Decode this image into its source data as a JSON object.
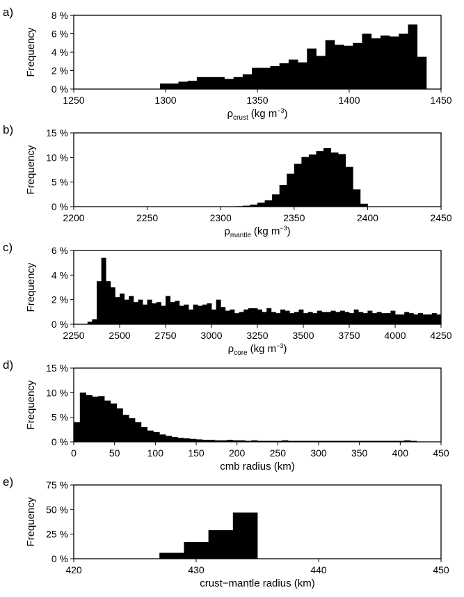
{
  "chart_data": [
    {
      "type": "bar",
      "panel": "a)",
      "ylabel": "Frequency",
      "xlabel_main": "ρ",
      "xlabel_sub": "crust",
      "xlabel_unit": "(kg m",
      "xlabel_sup": "−3",
      "xlabel_close": ")",
      "xlim": [
        1250,
        1450
      ],
      "ylim": [
        0,
        8
      ],
      "xticks": [
        "1250",
        "1300",
        "1350",
        "1400",
        "1450"
      ],
      "yticks": [
        "0 %",
        "2 %",
        "4 %",
        "6 %",
        "8 %"
      ],
      "bin_start": 1297,
      "bin_width": 5,
      "values": [
        0.6,
        0.6,
        0.8,
        0.9,
        1.3,
        1.3,
        1.3,
        1.1,
        1.3,
        1.6,
        2.3,
        2.3,
        2.5,
        2.8,
        3.2,
        2.9,
        4.4,
        3.6,
        5.3,
        4.8,
        4.7,
        5.0,
        6.0,
        5.5,
        5.8,
        5.7,
        6.0,
        7.0,
        3.5
      ]
    },
    {
      "type": "bar",
      "panel": "b)",
      "ylabel": "Frequency",
      "xlabel_main": "ρ",
      "xlabel_sub": "mantle",
      "xlabel_unit": "(kg m",
      "xlabel_sup": "−3",
      "xlabel_close": ")",
      "xlim": [
        2200,
        2450
      ],
      "ylim": [
        0,
        15
      ],
      "xticks": [
        "2200",
        "2250",
        "2300",
        "2350",
        "2400",
        "2450"
      ],
      "yticks": [
        "0 %",
        "5 %",
        "10 %",
        "15 %"
      ],
      "bin_start": 2310,
      "bin_width": 5,
      "values": [
        0.1,
        0.2,
        0.4,
        0.8,
        1.3,
        2.5,
        4.4,
        6.7,
        8.7,
        10.1,
        10.6,
        11.3,
        11.9,
        11.0,
        10.7,
        8.1,
        3.5,
        0.6
      ]
    },
    {
      "type": "bar",
      "panel": "c)",
      "ylabel": "Frequency",
      "xlabel_main": "ρ",
      "xlabel_sub": "core",
      "xlabel_unit": "(kg m",
      "xlabel_sup": "−3",
      "xlabel_close": ")",
      "xlim": [
        2250,
        4250
      ],
      "ylim": [
        0,
        6
      ],
      "xticks": [
        "2250",
        "2500",
        "2750",
        "3000",
        "3250",
        "3500",
        "3750",
        "4000",
        "4250"
      ],
      "yticks": [
        "0 %",
        "2 %",
        "4 %",
        "6 %"
      ],
      "bin_start": 2325,
      "bin_width": 25,
      "values": [
        0.2,
        0.4,
        3.5,
        5.4,
        3.5,
        3.0,
        2.2,
        2.5,
        2.0,
        2.3,
        1.8,
        2.0,
        1.6,
        2.0,
        1.7,
        1.8,
        1.5,
        2.3,
        1.8,
        1.9,
        1.5,
        1.6,
        1.2,
        1.6,
        1.5,
        1.6,
        1.7,
        1.2,
        2.0,
        1.4,
        1.1,
        1.2,
        0.9,
        1.0,
        1.2,
        1.3,
        1.3,
        1.2,
        1.0,
        1.3,
        1.0,
        0.9,
        1.2,
        1.1,
        0.9,
        1.0,
        1.2,
        0.9,
        1.0,
        0.9,
        1.1,
        1.0,
        1.0,
        1.1,
        1.0,
        1.1,
        1.0,
        0.9,
        1.2,
        1.0,
        0.9,
        1.1,
        0.9,
        1.0,
        0.9,
        0.9,
        1.1,
        0.8,
        0.8,
        1.0,
        0.9,
        0.8,
        0.9,
        0.8,
        0.8,
        0.9,
        0.8,
        0.8,
        0.9,
        0.8,
        0.8,
        0.9,
        0.8,
        0.8,
        0.7,
        0.9,
        0.8,
        0.8,
        0.7,
        0.8,
        0.8,
        0.7,
        0.8,
        0.9,
        0.7,
        0.8,
        0.8,
        0.7
      ]
    },
    {
      "type": "bar",
      "panel": "d)",
      "ylabel": "Frequency",
      "xlabel_main": "cmb radius (km)",
      "xlim": [
        0,
        450
      ],
      "ylim": [
        0,
        15
      ],
      "xticks": [
        "0",
        "50",
        "100",
        "150",
        "200",
        "250",
        "300",
        "350",
        "400",
        "450"
      ],
      "yticks": [
        "0 %",
        "5 %",
        "10 %",
        "15 %"
      ],
      "bin_start": 0,
      "bin_width": 7.5,
      "values": [
        4.0,
        10.0,
        9.5,
        9.2,
        9.3,
        8.4,
        7.8,
        6.8,
        5.5,
        4.8,
        4.0,
        3.0,
        2.3,
        2.0,
        1.5,
        1.2,
        1.0,
        0.8,
        0.7,
        0.6,
        0.5,
        0.4,
        0.4,
        0.3,
        0.3,
        0.4,
        0.3,
        0.3,
        0.2,
        0.3,
        0.2,
        0.2,
        0.2,
        0.2,
        0.3,
        0.2,
        0.2,
        0.2,
        0.2,
        0.2,
        0.2,
        0.2,
        0.2,
        0.2,
        0.2,
        0.2,
        0.2,
        0.2,
        0.2,
        0.2,
        0.2,
        0.2,
        0.2,
        0.2,
        0.3,
        0.2
      ]
    },
    {
      "type": "bar",
      "panel": "e)",
      "ylabel": "Frequency",
      "xlabel_main": "crust−mantle radius (km)",
      "xlim": [
        420,
        450
      ],
      "ylim": [
        0,
        75
      ],
      "xticks": [
        "420",
        "430",
        "440",
        "450"
      ],
      "yticks": [
        "0 %",
        "25 %",
        "50 %",
        "75 %"
      ],
      "bin_start": 427,
      "bin_width": 2,
      "values": [
        6,
        17,
        29,
        47
      ]
    }
  ]
}
